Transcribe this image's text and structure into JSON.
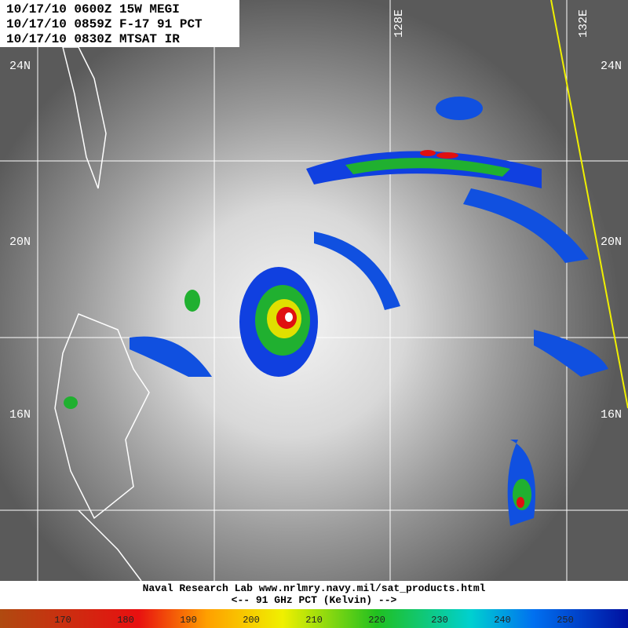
{
  "header": {
    "lines": [
      "10/17/10 0600Z 15W MEGI",
      "10/17/10 0859Z F-17 91 PCT",
      "10/17/10 0830Z MTSAT IR"
    ]
  },
  "grid": {
    "lat_labels": [
      "24N",
      "20N",
      "16N"
    ],
    "lon_labels": [
      "128E",
      "132E"
    ]
  },
  "footer": {
    "lines": [
      "Naval Research Lab  www.nrlmry.navy.mil/sat_products.html",
      "<--   91 GHz PCT (Kelvin)  -->"
    ]
  },
  "colorbar": {
    "ticks": [
      170,
      180,
      190,
      200,
      210,
      220,
      230,
      240,
      250
    ]
  }
}
